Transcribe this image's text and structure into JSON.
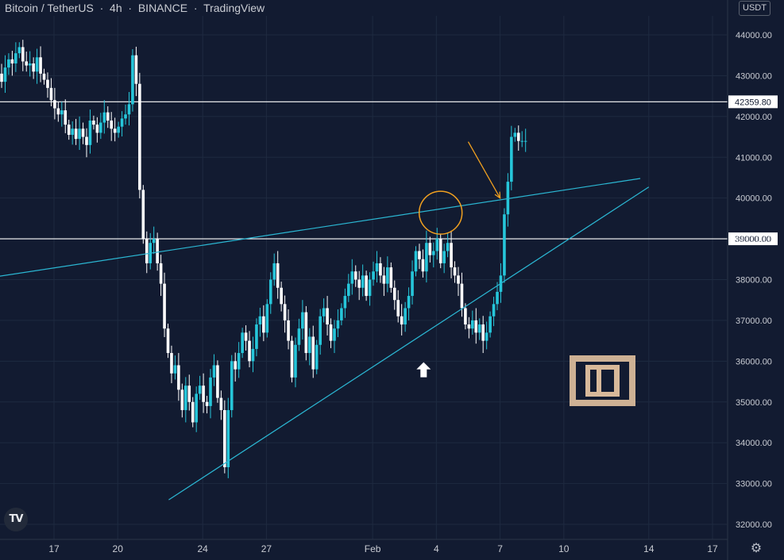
{
  "header": {
    "symbol": "Bitcoin / TetherUS",
    "interval": "4h",
    "exchange": "BINANCE",
    "source": "TradingView"
  },
  "unit_badge": "USDT",
  "colors": {
    "background": "#121b31",
    "grid": "#1e2a40",
    "candle": "#26c6da",
    "candle_alt": "#ffffff",
    "trendline": "#2bb7d3",
    "level_line": "#ffffff",
    "annotation": "#f0a020"
  },
  "chart_data": {
    "type": "candlestick",
    "title": "",
    "ylim": [
      31700,
      44800
    ],
    "y_ticks": [
      32000,
      33000,
      34000,
      35000,
      36000,
      37000,
      38000,
      39000,
      40000,
      41000,
      42000,
      43000,
      44000
    ],
    "y_tick_labels": [
      "32000.00",
      "33000.00",
      "34000.00",
      "35000.00",
      "36000.00",
      "37000.00",
      "38000.00",
      "39000.00",
      "40000.00",
      "41000.00",
      "42000.00",
      "43000.00",
      "44000.00"
    ],
    "x_ticks": [
      17,
      20,
      24,
      27,
      32,
      35,
      38,
      41,
      45,
      48
    ],
    "x_tick_labels": [
      "17",
      "20",
      "24",
      "27",
      "Feb",
      "4",
      "7",
      "10",
      "14",
      "17"
    ],
    "x_axis_unit": "day (Jan=day n, Feb 1 = 32)",
    "horizontal_levels": [
      {
        "price": 42359.8,
        "label": "42359.80"
      },
      {
        "price": 39000,
        "label": "39000.00"
      }
    ],
    "trendlines": [
      {
        "name": "upper resistance",
        "from": {
          "day": 14.4,
          "price": 38080
        },
        "to": {
          "day": 44.6,
          "price": 40480
        }
      },
      {
        "name": "lower support",
        "from": {
          "day": 22.4,
          "price": 32600
        },
        "to": {
          "day": 45.0,
          "price": 40270
        }
      }
    ],
    "annotations": [
      {
        "type": "circle",
        "day": 35.2,
        "price": 39640
      },
      {
        "type": "arrow",
        "from": {
          "day": 36.5,
          "price": 41380
        },
        "to": {
          "day": 38.0,
          "price": 40000
        }
      },
      {
        "type": "up-arrow-marker",
        "day": 34.4,
        "price": 35800
      }
    ],
    "candles_per_day": 6,
    "start_day": 14.2,
    "closes": [
      42900,
      43050,
      42850,
      43200,
      43400,
      43300,
      43550,
      43700,
      43350,
      43250,
      43300,
      43100,
      43450,
      43050,
      42900,
      42700,
      42400,
      42200,
      42050,
      42150,
      41800,
      41550,
      41700,
      41450,
      41700,
      41500,
      41300,
      41900,
      41800,
      41600,
      41850,
      42100,
      41900,
      41700,
      41600,
      41750,
      41950,
      42050,
      42300,
      43500,
      42800,
      40200,
      39000,
      38400,
      38900,
      39000,
      38400,
      37900,
      36800,
      36200,
      35700,
      35900,
      35300,
      34800,
      35400,
      35000,
      34500,
      35200,
      35400,
      35000,
      34900,
      35600,
      35900,
      35100,
      34800,
      33400,
      34800,
      36000,
      35800,
      36200,
      36700,
      36500,
      36000,
      36300,
      36900,
      37100,
      36700,
      37400,
      38000,
      38400,
      37800,
      37400,
      37000,
      36500,
      35600,
      36400,
      36800,
      37200,
      36200,
      36600,
      35800,
      36400,
      37100,
      37300,
      36900,
      36500,
      36800,
      37000,
      37300,
      37600,
      37900,
      38200,
      38000,
      37800,
      38100,
      37600,
      38000,
      38200,
      38400,
      38100,
      37900,
      38300,
      37800,
      37500,
      37100,
      36900,
      37300,
      37600,
      38200,
      38700,
      38500,
      38200,
      38900,
      38600,
      38700,
      39000,
      38400,
      38700,
      38900,
      38300,
      38100,
      37900,
      37300,
      36900,
      36800,
      37000,
      36700,
      36900,
      36500,
      36700,
      37100,
      37400,
      37700,
      38100,
      39600,
      40400,
      41500,
      41600,
      41400,
      41400,
      41400
    ],
    "series": [
      {
        "name": "",
        "values": []
      }
    ]
  }
}
